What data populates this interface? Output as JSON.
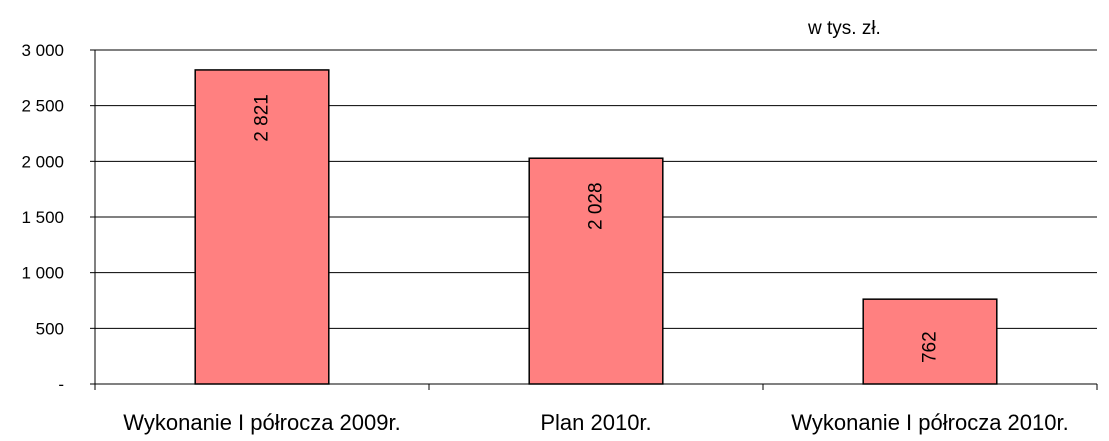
{
  "chart_data": {
    "type": "bar",
    "unit_label": "w tys. zł.",
    "categories": [
      "Wykonanie I półrocza 2009r.",
      "Plan 2010r.",
      "Wykonanie I półrocza 2010r."
    ],
    "values": [
      2821,
      2028,
      762
    ],
    "value_labels": [
      "2 821",
      "2 028",
      "762"
    ],
    "ylim": [
      0,
      3000
    ],
    "yticks": [
      0,
      500,
      1000,
      1500,
      2000,
      2500,
      3000
    ],
    "ytick_labels": [
      "-",
      "500",
      "1 000",
      "1 500",
      "2 000",
      "2 500",
      "3 000"
    ],
    "grid": true,
    "bar_color": "#FF8080",
    "bar_stroke": "#000000"
  }
}
